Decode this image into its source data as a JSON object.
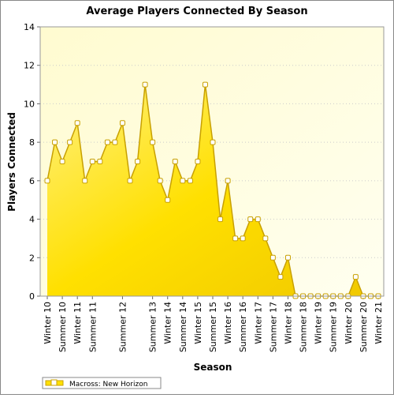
{
  "chart_data": {
    "type": "area",
    "title": "Average Players Connected By Season",
    "x_label": "Season",
    "y_label": "Players Connected",
    "categories": [
      "Winter 10",
      null,
      "Summer 10",
      null,
      "Winter 11",
      null,
      "Summer 11",
      null,
      null,
      null,
      "Summer 12",
      null,
      null,
      null,
      "Summer 13",
      null,
      "Winter 14",
      null,
      "Summer 14",
      null,
      "Winter 15",
      null,
      "Summer 15",
      null,
      "Winter 16",
      null,
      "Summer 16",
      null,
      "Winter 17",
      null,
      "Summer 17",
      null,
      "Winter 18",
      null,
      "Summer 18",
      null,
      "Winter 19",
      null,
      "Summer 19",
      null,
      "Winter 20",
      null,
      "Summer 20",
      null,
      "Winter 21"
    ],
    "series": [
      {
        "name": "Macross: New Horizon",
        "color": "#ffe000",
        "values": [
          6,
          8,
          7,
          8,
          9,
          6,
          7,
          7,
          8,
          8,
          9,
          6,
          7,
          11,
          8,
          6,
          5,
          7,
          6,
          6,
          7,
          11,
          8,
          4,
          6,
          3,
          3,
          4,
          4,
          3,
          2,
          1,
          2,
          0,
          0,
          0,
          0,
          0,
          0,
          0,
          0,
          1,
          0,
          0,
          0
        ]
      }
    ],
    "ylim": [
      0,
      14
    ],
    "yticks": [
      0,
      2,
      4,
      6,
      8,
      10,
      12,
      14
    ],
    "grid": true,
    "legend": "bottom-left"
  }
}
